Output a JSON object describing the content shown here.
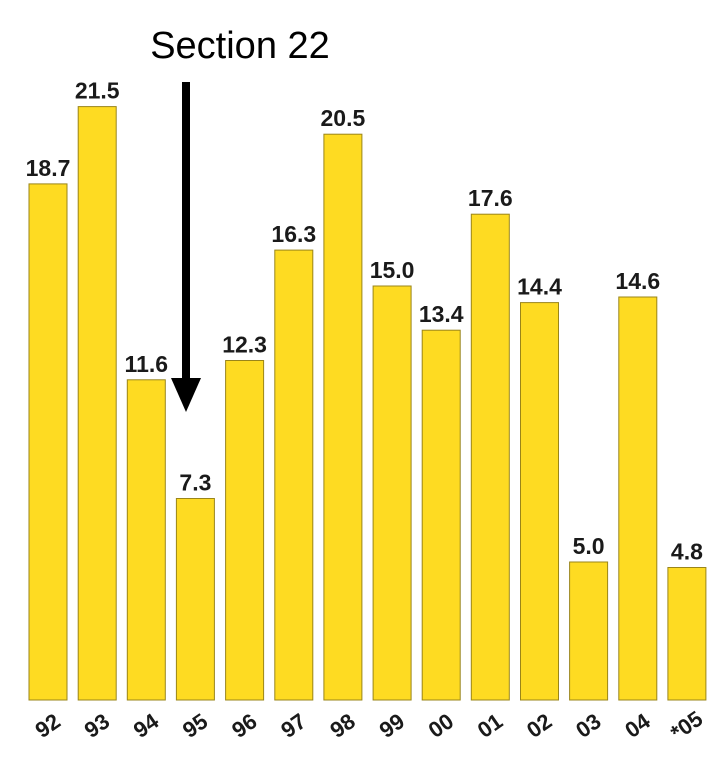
{
  "chart_data": {
    "type": "bar",
    "title": "",
    "xlabel": "",
    "ylabel": "",
    "categories": [
      "92",
      "93",
      "94",
      "95",
      "96",
      "97",
      "98",
      "99",
      "00",
      "01",
      "02",
      "03",
      "04",
      "*05"
    ],
    "values": [
      18.7,
      21.5,
      11.6,
      7.3,
      12.3,
      16.3,
      20.5,
      15.0,
      13.4,
      17.6,
      14.4,
      5.0,
      14.6,
      4.8
    ],
    "value_labels": [
      "18.7",
      "21.5",
      "11.6",
      "7.3",
      "12.3",
      "16.3",
      "20.5",
      "15.0",
      "13.4",
      "17.6",
      "14.4",
      "5.0",
      "14.6",
      "4.8"
    ],
    "ylim": [
      0,
      25
    ],
    "grid": false,
    "legend": "none",
    "bar_color": "#FEDB22",
    "annotations": [
      {
        "text": "Section 22",
        "category": "95",
        "icon": "down-arrow-icon"
      }
    ]
  }
}
